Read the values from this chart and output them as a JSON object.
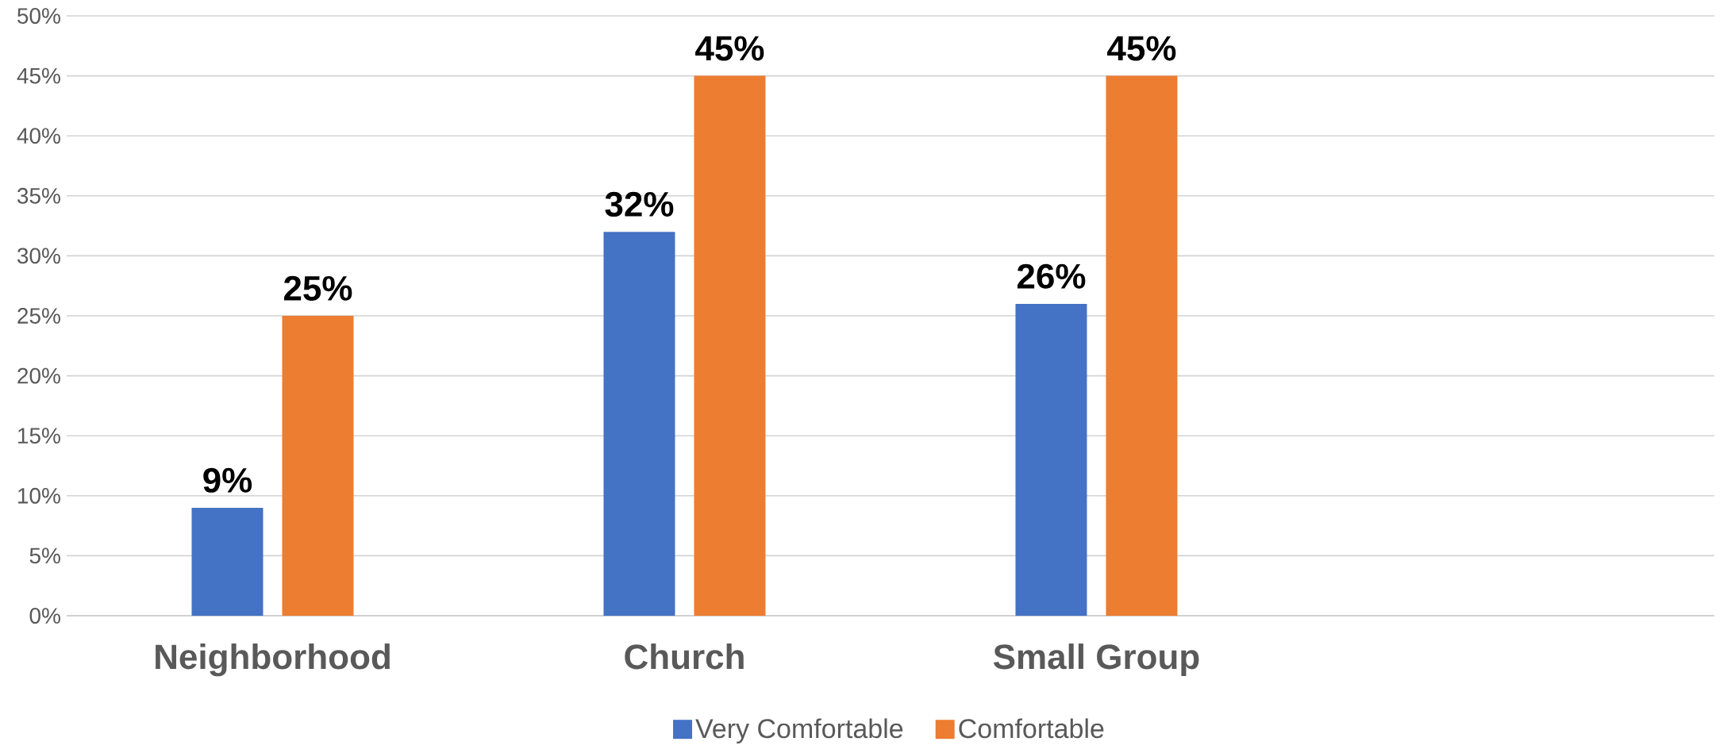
{
  "chart_data": {
    "type": "bar",
    "categories": [
      "Neighborhood",
      "Church",
      "Small Group",
      null
    ],
    "series": [
      {
        "name": "Very Comfortable",
        "color": "#4472c4",
        "values": [
          9,
          32,
          26,
          null
        ],
        "value_labels": [
          "9%",
          "32%",
          "26%",
          null
        ]
      },
      {
        "name": "Comfortable",
        "color": "#ed7d31",
        "values": [
          25,
          45,
          45,
          null
        ],
        "value_labels": [
          "25%",
          "45%",
          "45%",
          null
        ]
      }
    ],
    "ylim": [
      0,
      50
    ],
    "yticks": [
      {
        "value": 0,
        "label": "0%"
      },
      {
        "value": 5,
        "label": "5%"
      },
      {
        "value": 10,
        "label": "10%"
      },
      {
        "value": 15,
        "label": "15%"
      },
      {
        "value": 20,
        "label": "20%"
      },
      {
        "value": 25,
        "label": "25%"
      },
      {
        "value": 30,
        "label": "30%"
      },
      {
        "value": 35,
        "label": "35%"
      },
      {
        "value": 40,
        "label": "40%"
      },
      {
        "value": 45,
        "label": "45%"
      },
      {
        "value": 50,
        "label": "50%"
      }
    ],
    "grid": "y",
    "legend": "bottom"
  }
}
